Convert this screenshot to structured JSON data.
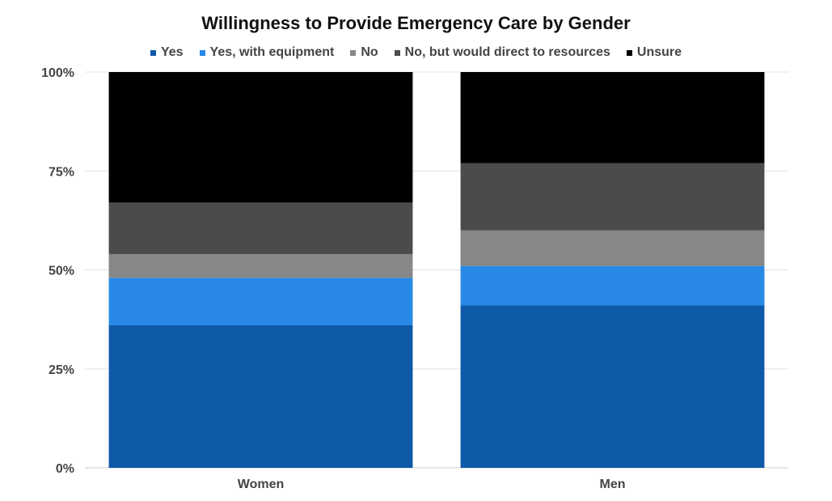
{
  "chart_data": {
    "type": "bar",
    "stacked": true,
    "title": "Willingness to Provide Emergency Care by Gender",
    "categories": [
      "Women",
      "Men"
    ],
    "series": [
      {
        "name": "Yes",
        "color": "#0E59A8",
        "values": [
          36,
          41
        ]
      },
      {
        "name": "Yes, with equipment",
        "color": "#2889E6",
        "values": [
          12,
          10
        ]
      },
      {
        "name": "No",
        "color": "#878787",
        "values": [
          6,
          9
        ]
      },
      {
        "name": "No, but would direct to resources",
        "color": "#4B4B4B",
        "values": [
          13,
          17
        ]
      },
      {
        "name": "Unsure",
        "color": "#000000",
        "values": [
          33,
          23
        ]
      }
    ],
    "yticks": [
      "0%",
      "25%",
      "50%",
      "75%",
      "100%"
    ],
    "ylim": [
      0,
      100
    ],
    "xlabel": "",
    "ylabel": "",
    "legend_position": "top",
    "grid": true
  }
}
